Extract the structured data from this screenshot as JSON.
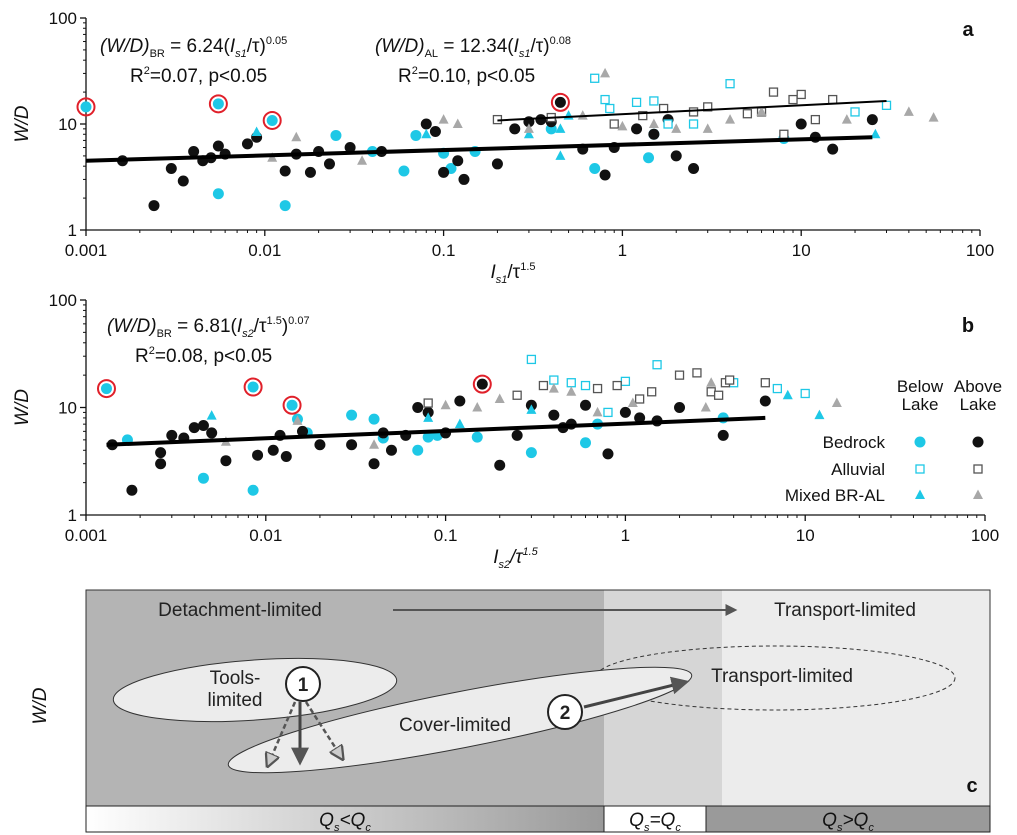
{
  "chart_data": [
    {
      "type": "scatter",
      "panel": "a",
      "log_x": true,
      "log_y": true,
      "xlim": [
        0.001,
        100
      ],
      "xticks": [
        0.001,
        0.01,
        0.1,
        1,
        10,
        100
      ],
      "ylim": [
        1,
        100
      ],
      "yticks": [
        1,
        10,
        100
      ],
      "ylabel": {
        "text": [
          "W/D"
        ],
        "form": [
          "i"
        ]
      },
      "xlabel": {
        "text": [
          "I",
          "s1",
          "/τ",
          "1.5"
        ],
        "form": [
          "i",
          "subi",
          "n",
          "sup"
        ]
      },
      "annotations": [
        {
          "text": [
            "(W/D)",
            "BR",
            " = 6.24(",
            "I",
            "s1",
            "/τ)",
            "0.05"
          ],
          "form": [
            "i",
            "sub",
            "n",
            "i",
            "subi",
            "n",
            "sup"
          ]
        },
        {
          "text": [
            "R",
            "2",
            "=0.07, p<0.05"
          ],
          "form": [
            "n",
            "sup",
            "n"
          ]
        },
        {
          "text": [
            "(W/D)",
            "AL",
            " = 12.34(",
            "I",
            "s1",
            "/τ)",
            "0.08"
          ],
          "form": [
            "i",
            "sub",
            "n",
            "i",
            "subi",
            "n",
            "sup"
          ]
        },
        {
          "text": [
            "R",
            "2",
            "=0.10, p<0.05"
          ],
          "form": [
            "n",
            "sup",
            "n"
          ]
        }
      ],
      "series": [
        {
          "marker": "circle",
          "color": "#1ec8e6",
          "filled": true,
          "x": [
            0.001,
            0.0055,
            0.0055,
            0.011,
            0.013,
            0.025,
            0.04,
            0.06,
            0.07,
            0.1,
            0.11,
            0.15,
            0.4,
            0.7,
            1.4,
            1.5,
            8
          ],
          "y": [
            14.5,
            15.5,
            2.2,
            10.8,
            1.7,
            7.8,
            5.5,
            3.6,
            7.8,
            5.3,
            3.8,
            5.5,
            9,
            3.8,
            4.8,
            8,
            7.3
          ]
        },
        {
          "marker": "circle",
          "color": "#111111",
          "filled": true,
          "x": [
            0.0016,
            0.0024,
            0.003,
            0.0035,
            0.004,
            0.0045,
            0.005,
            0.0055,
            0.006,
            0.008,
            0.009,
            0.013,
            0.015,
            0.018,
            0.02,
            0.023,
            0.03,
            0.045,
            0.08,
            0.09,
            0.1,
            0.12,
            0.13,
            0.2,
            0.25,
            0.3,
            0.35,
            0.4,
            0.45,
            0.6,
            0.8,
            0.9,
            1.2,
            1.5,
            1.8,
            2,
            2.5,
            10,
            12,
            15,
            25
          ],
          "y": [
            4.5,
            1.7,
            3.8,
            2.9,
            5.5,
            4.5,
            4.8,
            6.2,
            5.2,
            6.5,
            7.5,
            3.6,
            5.2,
            3.5,
            5.5,
            4.2,
            6,
            5.5,
            10,
            8.5,
            3.5,
            4.5,
            3,
            4.2,
            9,
            10.5,
            11,
            10.5,
            16,
            5.8,
            3.3,
            6,
            9,
            8,
            11,
            5,
            3.8,
            10,
            7.5,
            5.8,
            11
          ]
        },
        {
          "marker": "square",
          "color": "#1ec8e6",
          "filled": false,
          "x": [
            0.7,
            0.8,
            0.85,
            1.2,
            1.5,
            1.8,
            2.5,
            4,
            20,
            30
          ],
          "y": [
            27,
            17,
            14,
            16,
            16.5,
            10,
            10,
            24,
            13,
            15
          ]
        },
        {
          "marker": "square",
          "color": "#555555",
          "filled": false,
          "x": [
            0.2,
            0.4,
            0.9,
            1.3,
            1.7,
            2.5,
            3,
            5,
            6,
            7,
            8,
            9,
            10,
            15,
            12
          ],
          "y": [
            11,
            11.5,
            10,
            12,
            14,
            13,
            14.5,
            12.5,
            13,
            20,
            8,
            17,
            19,
            17,
            11
          ]
        },
        {
          "marker": "triangle",
          "color": "#1ec8e6",
          "filled": true,
          "x": [
            0.009,
            0.08,
            0.3,
            0.45,
            0.45,
            0.5,
            26
          ],
          "y": [
            8.4,
            8,
            8,
            5,
            9,
            12,
            8
          ]
        },
        {
          "marker": "triangle",
          "color": "#a8a8a8",
          "filled": true,
          "x": [
            0.011,
            0.015,
            0.035,
            0.1,
            0.12,
            0.3,
            0.6,
            0.8,
            1,
            1.5,
            2,
            3,
            4,
            6,
            18,
            40,
            55
          ],
          "y": [
            4.8,
            7.5,
            4.5,
            11,
            10,
            9,
            12,
            30,
            9.5,
            10,
            9,
            9,
            11,
            13,
            11,
            13,
            11.5
          ]
        }
      ],
      "highlighted": {
        "color": "#e0202a",
        "x": [
          0.001,
          0.0055,
          0.011,
          0.45
        ],
        "y": [
          14.5,
          15.5,
          10.8,
          16
        ]
      },
      "fits": [
        {
          "width": 4,
          "x": [
            0.001,
            25
          ],
          "y": [
            4.5,
            7.5
          ]
        },
        {
          "width": 2,
          "x": [
            0.2,
            30
          ],
          "y": [
            10.8,
            16.5
          ]
        }
      ]
    },
    {
      "type": "scatter",
      "panel": "b",
      "log_x": true,
      "log_y": true,
      "xlim": [
        0.001,
        100
      ],
      "xticks": [
        0.001,
        0.01,
        0.1,
        1,
        10,
        100
      ],
      "ylim": [
        1,
        100
      ],
      "yticks": [
        1,
        10,
        100
      ],
      "ylabel": {
        "text": [
          "W/D"
        ],
        "form": [
          "i"
        ]
      },
      "xlabel": {
        "text": [
          "I",
          "s2",
          "/τ",
          "1.5"
        ],
        "form": [
          "i",
          "subi",
          "i",
          "supi"
        ]
      },
      "annotations": [
        {
          "text": [
            "(W/D)",
            "BR",
            " = 6.81(",
            "I",
            "s2",
            "/τ",
            "1.5",
            ")",
            "0.07"
          ],
          "form": [
            "i",
            "sub",
            "n",
            "i",
            "subi",
            "n",
            "sup",
            "n",
            "sup"
          ]
        },
        {
          "text": [
            "R",
            "2",
            "=0.08, p<0.05"
          ],
          "form": [
            "n",
            "sup",
            "n"
          ]
        }
      ],
      "legend_columns": [
        [
          "Below",
          "Lake"
        ],
        [
          "Above",
          "Lake"
        ]
      ],
      "legend_rows": [
        "Bedrock",
        "Alluvial",
        "Mixed BR-AL"
      ],
      "series": [
        {
          "marker": "circle",
          "color": "#1ec8e6",
          "filled": true,
          "row": 0,
          "column": 0,
          "x": [
            0.0013,
            0.0017,
            0.0045,
            0.0085,
            0.0085,
            0.014,
            0.015,
            0.017,
            0.03,
            0.04,
            0.045,
            0.07,
            0.08,
            0.09,
            0.15,
            0.3,
            0.6,
            0.7,
            3.5
          ],
          "y": [
            15,
            5,
            2.2,
            15.5,
            1.7,
            10.5,
            7.8,
            5.8,
            8.5,
            7.8,
            5.2,
            4,
            5.3,
            5.5,
            5.3,
            3.8,
            4.7,
            7,
            8
          ]
        },
        {
          "marker": "circle",
          "color": "#111111",
          "filled": true,
          "row": 0,
          "column": 1,
          "x": [
            0.0014,
            0.0018,
            0.0026,
            0.0026,
            0.003,
            0.0035,
            0.004,
            0.0045,
            0.005,
            0.006,
            0.009,
            0.011,
            0.012,
            0.013,
            0.016,
            0.02,
            0.03,
            0.04,
            0.045,
            0.05,
            0.06,
            0.07,
            0.08,
            0.1,
            0.12,
            0.16,
            0.2,
            0.25,
            0.3,
            0.4,
            0.45,
            0.5,
            0.6,
            0.8,
            1,
            1.2,
            1.5,
            2,
            3.5,
            6
          ],
          "y": [
            4.5,
            1.7,
            3,
            3.8,
            5.5,
            5.2,
            6.5,
            6.8,
            5.8,
            3.2,
            3.6,
            4,
            5.5,
            3.5,
            6,
            4.5,
            4.5,
            3,
            5.8,
            4,
            5.5,
            10,
            9,
            5.8,
            11.5,
            16.5,
            2.9,
            5.5,
            10.5,
            8.5,
            6.5,
            7,
            10.5,
            3.7,
            9,
            8,
            7.5,
            10,
            5.5,
            11.5
          ]
        },
        {
          "marker": "square",
          "color": "#1ec8e6",
          "filled": false,
          "row": 1,
          "column": 0,
          "x": [
            0.3,
            0.4,
            0.5,
            0.6,
            0.8,
            1,
            1.5,
            4,
            7,
            10
          ],
          "y": [
            28,
            18,
            17,
            16,
            9,
            17.5,
            25,
            17,
            15,
            13.5
          ]
        },
        {
          "marker": "square",
          "color": "#555555",
          "filled": false,
          "row": 1,
          "column": 1,
          "x": [
            0.08,
            0.25,
            0.35,
            0.7,
            0.9,
            1.2,
            1.4,
            2,
            2.5,
            3,
            3.3,
            3.6,
            3.8,
            6
          ],
          "y": [
            11,
            13,
            16,
            15,
            16,
            12,
            14,
            20,
            21,
            14,
            13,
            17,
            18,
            17
          ]
        },
        {
          "marker": "triangle",
          "color": "#1ec8e6",
          "filled": true,
          "row": 2,
          "column": 0,
          "x": [
            0.005,
            0.08,
            0.12,
            0.3,
            8,
            12
          ],
          "y": [
            8.4,
            8,
            7,
            9.5,
            13,
            8.5
          ]
        },
        {
          "marker": "triangle",
          "color": "#a8a8a8",
          "filled": true,
          "row": 2,
          "column": 1,
          "x": [
            0.006,
            0.015,
            0.04,
            0.1,
            0.15,
            0.2,
            0.4,
            0.5,
            0.7,
            1.1,
            2.8,
            3,
            15
          ],
          "y": [
            4.8,
            7.5,
            4.5,
            10.5,
            10,
            12,
            15,
            14,
            9,
            11,
            10,
            17,
            11
          ]
        }
      ],
      "highlighted": {
        "color": "#e0202a",
        "x": [
          0.0013,
          0.0085,
          0.014,
          0.16
        ],
        "y": [
          15,
          15.5,
          10.5,
          16.5
        ]
      },
      "fits": [
        {
          "width": 4,
          "x": [
            0.0013,
            6
          ],
          "y": [
            4.5,
            8
          ]
        }
      ]
    }
  ],
  "diagram": {
    "panel": "c",
    "ylabel": "W/D",
    "top_left": "Detachment-limited",
    "top_right": "Transport-limited",
    "ellipse_tools": [
      "Tools-",
      "limited"
    ],
    "ellipse_cover": "Cover-limited",
    "ellipse_transport": "Transport-limited",
    "steps": [
      "1",
      "2"
    ],
    "regimes": [
      {
        "text": [
          "Q",
          "s",
          "<Q",
          "c"
        ],
        "form": [
          "i",
          "subi",
          "i",
          "subi"
        ]
      },
      {
        "text": [
          "Q",
          "s",
          "=Q",
          "c"
        ],
        "form": [
          "i",
          "subi",
          "i",
          "subi"
        ]
      },
      {
        "text": [
          "Q",
          "s",
          ">Q",
          "c"
        ],
        "form": [
          "i",
          "subi",
          "i",
          "subi"
        ]
      }
    ]
  }
}
